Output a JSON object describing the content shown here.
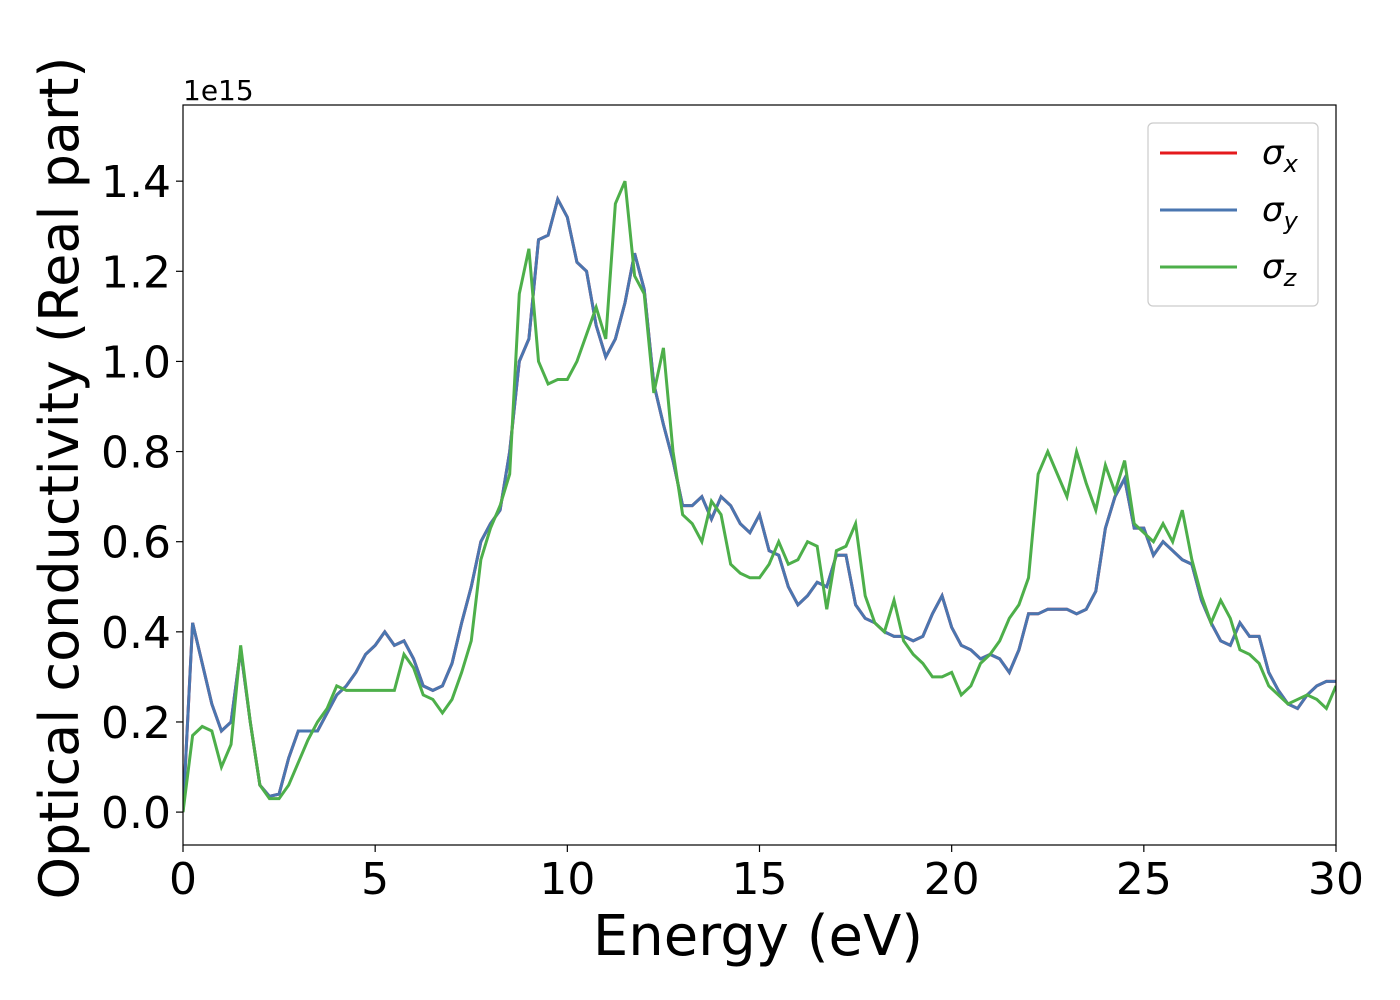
{
  "chart_data": {
    "type": "line",
    "xlabel": "Energy (eV)",
    "ylabel": "Optical conductivity (Real part)",
    "y_offset_label": "1e15",
    "xlim": [
      0,
      30
    ],
    "ylim": [
      -0.073,
      1.569
    ],
    "xticks": [
      0,
      5,
      10,
      15,
      20,
      25,
      30
    ],
    "yticks": [
      {
        "value": 0,
        "label": "0.0"
      },
      {
        "value": 0.2,
        "label": "0.2"
      },
      {
        "value": 0.4,
        "label": "0.4"
      },
      {
        "value": 0.6,
        "label": "0.6"
      },
      {
        "value": 0.8,
        "label": "0.8"
      },
      {
        "value": 1.0,
        "label": "1.0"
      },
      {
        "value": 1.2,
        "label": "1.2"
      },
      {
        "value": 1.4,
        "label": "1.4"
      }
    ],
    "legend": "upper right",
    "grid": false,
    "x": [
      0,
      0.25,
      0.5,
      0.75,
      1,
      1.25,
      1.5,
      1.75,
      2,
      2.25,
      2.5,
      2.75,
      3,
      3.25,
      3.5,
      3.75,
      4,
      4.25,
      4.5,
      4.75,
      5,
      5.25,
      5.5,
      5.75,
      6,
      6.25,
      6.5,
      6.75,
      7,
      7.25,
      7.5,
      7.75,
      8,
      8.25,
      8.5,
      8.75,
      9,
      9.25,
      9.5,
      9.75,
      10,
      10.25,
      10.5,
      10.75,
      11,
      11.25,
      11.5,
      11.75,
      12,
      12.25,
      12.5,
      12.75,
      13,
      13.25,
      13.5,
      13.75,
      14,
      14.25,
      14.5,
      14.75,
      15,
      15.25,
      15.5,
      15.75,
      16,
      16.25,
      16.5,
      16.75,
      17,
      17.25,
      17.5,
      17.75,
      18,
      18.25,
      18.5,
      18.75,
      19,
      19.25,
      19.5,
      19.75,
      20,
      20.25,
      20.5,
      20.75,
      21,
      21.25,
      21.5,
      21.75,
      22,
      22.25,
      22.5,
      22.75,
      23,
      23.25,
      23.5,
      23.75,
      24,
      24.25,
      24.5,
      24.75,
      25,
      25.25,
      25.5,
      25.75,
      26,
      26.25,
      26.5,
      26.75,
      27,
      27.25,
      27.5,
      27.75,
      28,
      28.25,
      28.5,
      28.75,
      29,
      29.25,
      29.5,
      29.75,
      30
    ],
    "series": [
      {
        "name": "σx",
        "color": "#e41a1c",
        "values": [
          0,
          0.42,
          0.33,
          0.24,
          0.18,
          0.2,
          0.36,
          0.2,
          0.06,
          0.035,
          0.04,
          0.12,
          0.18,
          0.18,
          0.18,
          0.22,
          0.26,
          0.28,
          0.31,
          0.35,
          0.37,
          0.4,
          0.37,
          0.38,
          0.34,
          0.28,
          0.27,
          0.28,
          0.33,
          0.42,
          0.5,
          0.6,
          0.64,
          0.67,
          0.8,
          1.0,
          1.05,
          1.27,
          1.28,
          1.36,
          1.32,
          1.22,
          1.2,
          1.08,
          1.01,
          1.05,
          1.13,
          1.24,
          1.16,
          0.95,
          0.86,
          0.78,
          0.68,
          0.68,
          0.7,
          0.65,
          0.7,
          0.68,
          0.64,
          0.62,
          0.66,
          0.58,
          0.57,
          0.5,
          0.46,
          0.48,
          0.51,
          0.5,
          0.57,
          0.57,
          0.46,
          0.43,
          0.42,
          0.4,
          0.39,
          0.39,
          0.38,
          0.39,
          0.44,
          0.48,
          0.41,
          0.37,
          0.36,
          0.34,
          0.35,
          0.34,
          0.31,
          0.36,
          0.44,
          0.44,
          0.45,
          0.45,
          0.45,
          0.44,
          0.45,
          0.49,
          0.63,
          0.7,
          0.74,
          0.63,
          0.63,
          0.57,
          0.6,
          0.58,
          0.56,
          0.55,
          0.47,
          0.42,
          0.38,
          0.37,
          0.42,
          0.39,
          0.39,
          0.31,
          0.27,
          0.24,
          0.23,
          0.26,
          0.28,
          0.29,
          0.29
        ]
      },
      {
        "name": "σy",
        "color": "#4a76b0",
        "values": [
          0,
          0.42,
          0.33,
          0.24,
          0.18,
          0.2,
          0.36,
          0.2,
          0.06,
          0.035,
          0.04,
          0.12,
          0.18,
          0.18,
          0.18,
          0.22,
          0.26,
          0.28,
          0.31,
          0.35,
          0.37,
          0.4,
          0.37,
          0.38,
          0.34,
          0.28,
          0.27,
          0.28,
          0.33,
          0.42,
          0.5,
          0.6,
          0.64,
          0.67,
          0.8,
          1.0,
          1.05,
          1.27,
          1.28,
          1.36,
          1.32,
          1.22,
          1.2,
          1.08,
          1.01,
          1.05,
          1.13,
          1.24,
          1.16,
          0.95,
          0.86,
          0.78,
          0.68,
          0.68,
          0.7,
          0.65,
          0.7,
          0.68,
          0.64,
          0.62,
          0.66,
          0.58,
          0.57,
          0.5,
          0.46,
          0.48,
          0.51,
          0.5,
          0.57,
          0.57,
          0.46,
          0.43,
          0.42,
          0.4,
          0.39,
          0.39,
          0.38,
          0.39,
          0.44,
          0.48,
          0.41,
          0.37,
          0.36,
          0.34,
          0.35,
          0.34,
          0.31,
          0.36,
          0.44,
          0.44,
          0.45,
          0.45,
          0.45,
          0.44,
          0.45,
          0.49,
          0.63,
          0.7,
          0.74,
          0.63,
          0.63,
          0.57,
          0.6,
          0.58,
          0.56,
          0.55,
          0.47,
          0.42,
          0.38,
          0.37,
          0.42,
          0.39,
          0.39,
          0.31,
          0.27,
          0.24,
          0.23,
          0.26,
          0.28,
          0.29,
          0.29
        ]
      },
      {
        "name": "σz",
        "color": "#4daf4a",
        "values": [
          0,
          0.17,
          0.19,
          0.18,
          0.1,
          0.15,
          0.37,
          0.2,
          0.06,
          0.03,
          0.03,
          0.06,
          0.11,
          0.16,
          0.2,
          0.23,
          0.28,
          0.27,
          0.27,
          0.27,
          0.27,
          0.27,
          0.27,
          0.35,
          0.32,
          0.26,
          0.25,
          0.22,
          0.25,
          0.31,
          0.38,
          0.56,
          0.63,
          0.68,
          0.75,
          1.15,
          1.25,
          1.0,
          0.95,
          0.96,
          0.96,
          1.0,
          1.06,
          1.12,
          1.05,
          1.35,
          1.4,
          1.19,
          1.15,
          0.93,
          1.03,
          0.8,
          0.66,
          0.64,
          0.6,
          0.69,
          0.66,
          0.55,
          0.53,
          0.52,
          0.52,
          0.55,
          0.6,
          0.55,
          0.56,
          0.6,
          0.59,
          0.45,
          0.58,
          0.59,
          0.64,
          0.48,
          0.42,
          0.4,
          0.47,
          0.38,
          0.35,
          0.33,
          0.3,
          0.3,
          0.31,
          0.26,
          0.28,
          0.33,
          0.35,
          0.38,
          0.43,
          0.46,
          0.52,
          0.75,
          0.8,
          0.75,
          0.7,
          0.8,
          0.73,
          0.67,
          0.77,
          0.71,
          0.78,
          0.64,
          0.62,
          0.6,
          0.64,
          0.6,
          0.67,
          0.56,
          0.48,
          0.42,
          0.47,
          0.43,
          0.36,
          0.35,
          0.33,
          0.28,
          0.26,
          0.24,
          0.25,
          0.26,
          0.25,
          0.23,
          0.28
        ]
      }
    ]
  }
}
